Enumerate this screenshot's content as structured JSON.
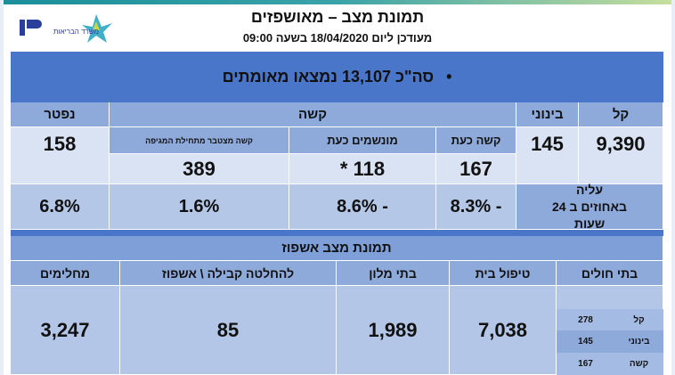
{
  "header": {
    "title": "תמונת מצב – מאושפזים",
    "subtitle": "מעודכן ליום 18/04/2020 בשעה 09:00",
    "logos": [
      "משרד הבריאות",
      "ministry-logo"
    ]
  },
  "total": "סה\"כ 13,107 נמצאו מאומתים",
  "table": {
    "headers": {
      "deceased": "נפטר",
      "severe": "קשה",
      "moderate": "בינוני",
      "mild": "קל"
    },
    "subheaders": {
      "severe_now": "קשה כעת",
      "ventilated_now": "מונשמים כעת",
      "severe_since_start": "קשה מצטבר מתחילת המגיפה"
    },
    "values": {
      "deceased": "158",
      "severe_now": "167",
      "ventilated_now": "118 *",
      "severe_since_start": "389",
      "moderate": "145",
      "mild": "9,390"
    },
    "increase_label": "עליה באחוזים ב 24 שעות",
    "increase": {
      "deceased": "6.8%",
      "severe_since_start": "1.6%",
      "ventilated_now": "- 8.6%",
      "severe_now": "- 8.3%"
    }
  },
  "hospitalization": {
    "title": "תמונת מצב אשפוז",
    "headers": {
      "recovered": "מחלימים",
      "pending": "להחלטה קבילה \\ אשפוז",
      "hotels": "בתי מלון",
      "home": "טיפול בית",
      "hospitals": "בתי חולים"
    },
    "values": {
      "recovered": "3,247",
      "pending": "85",
      "hotels": "1,989",
      "home": "7,038"
    },
    "hospital_breakdown": [
      {
        "label": "קל",
        "value": "278"
      },
      {
        "label": "בינוני",
        "value": "145"
      },
      {
        "label": "קשה",
        "value": "167"
      }
    ]
  }
}
